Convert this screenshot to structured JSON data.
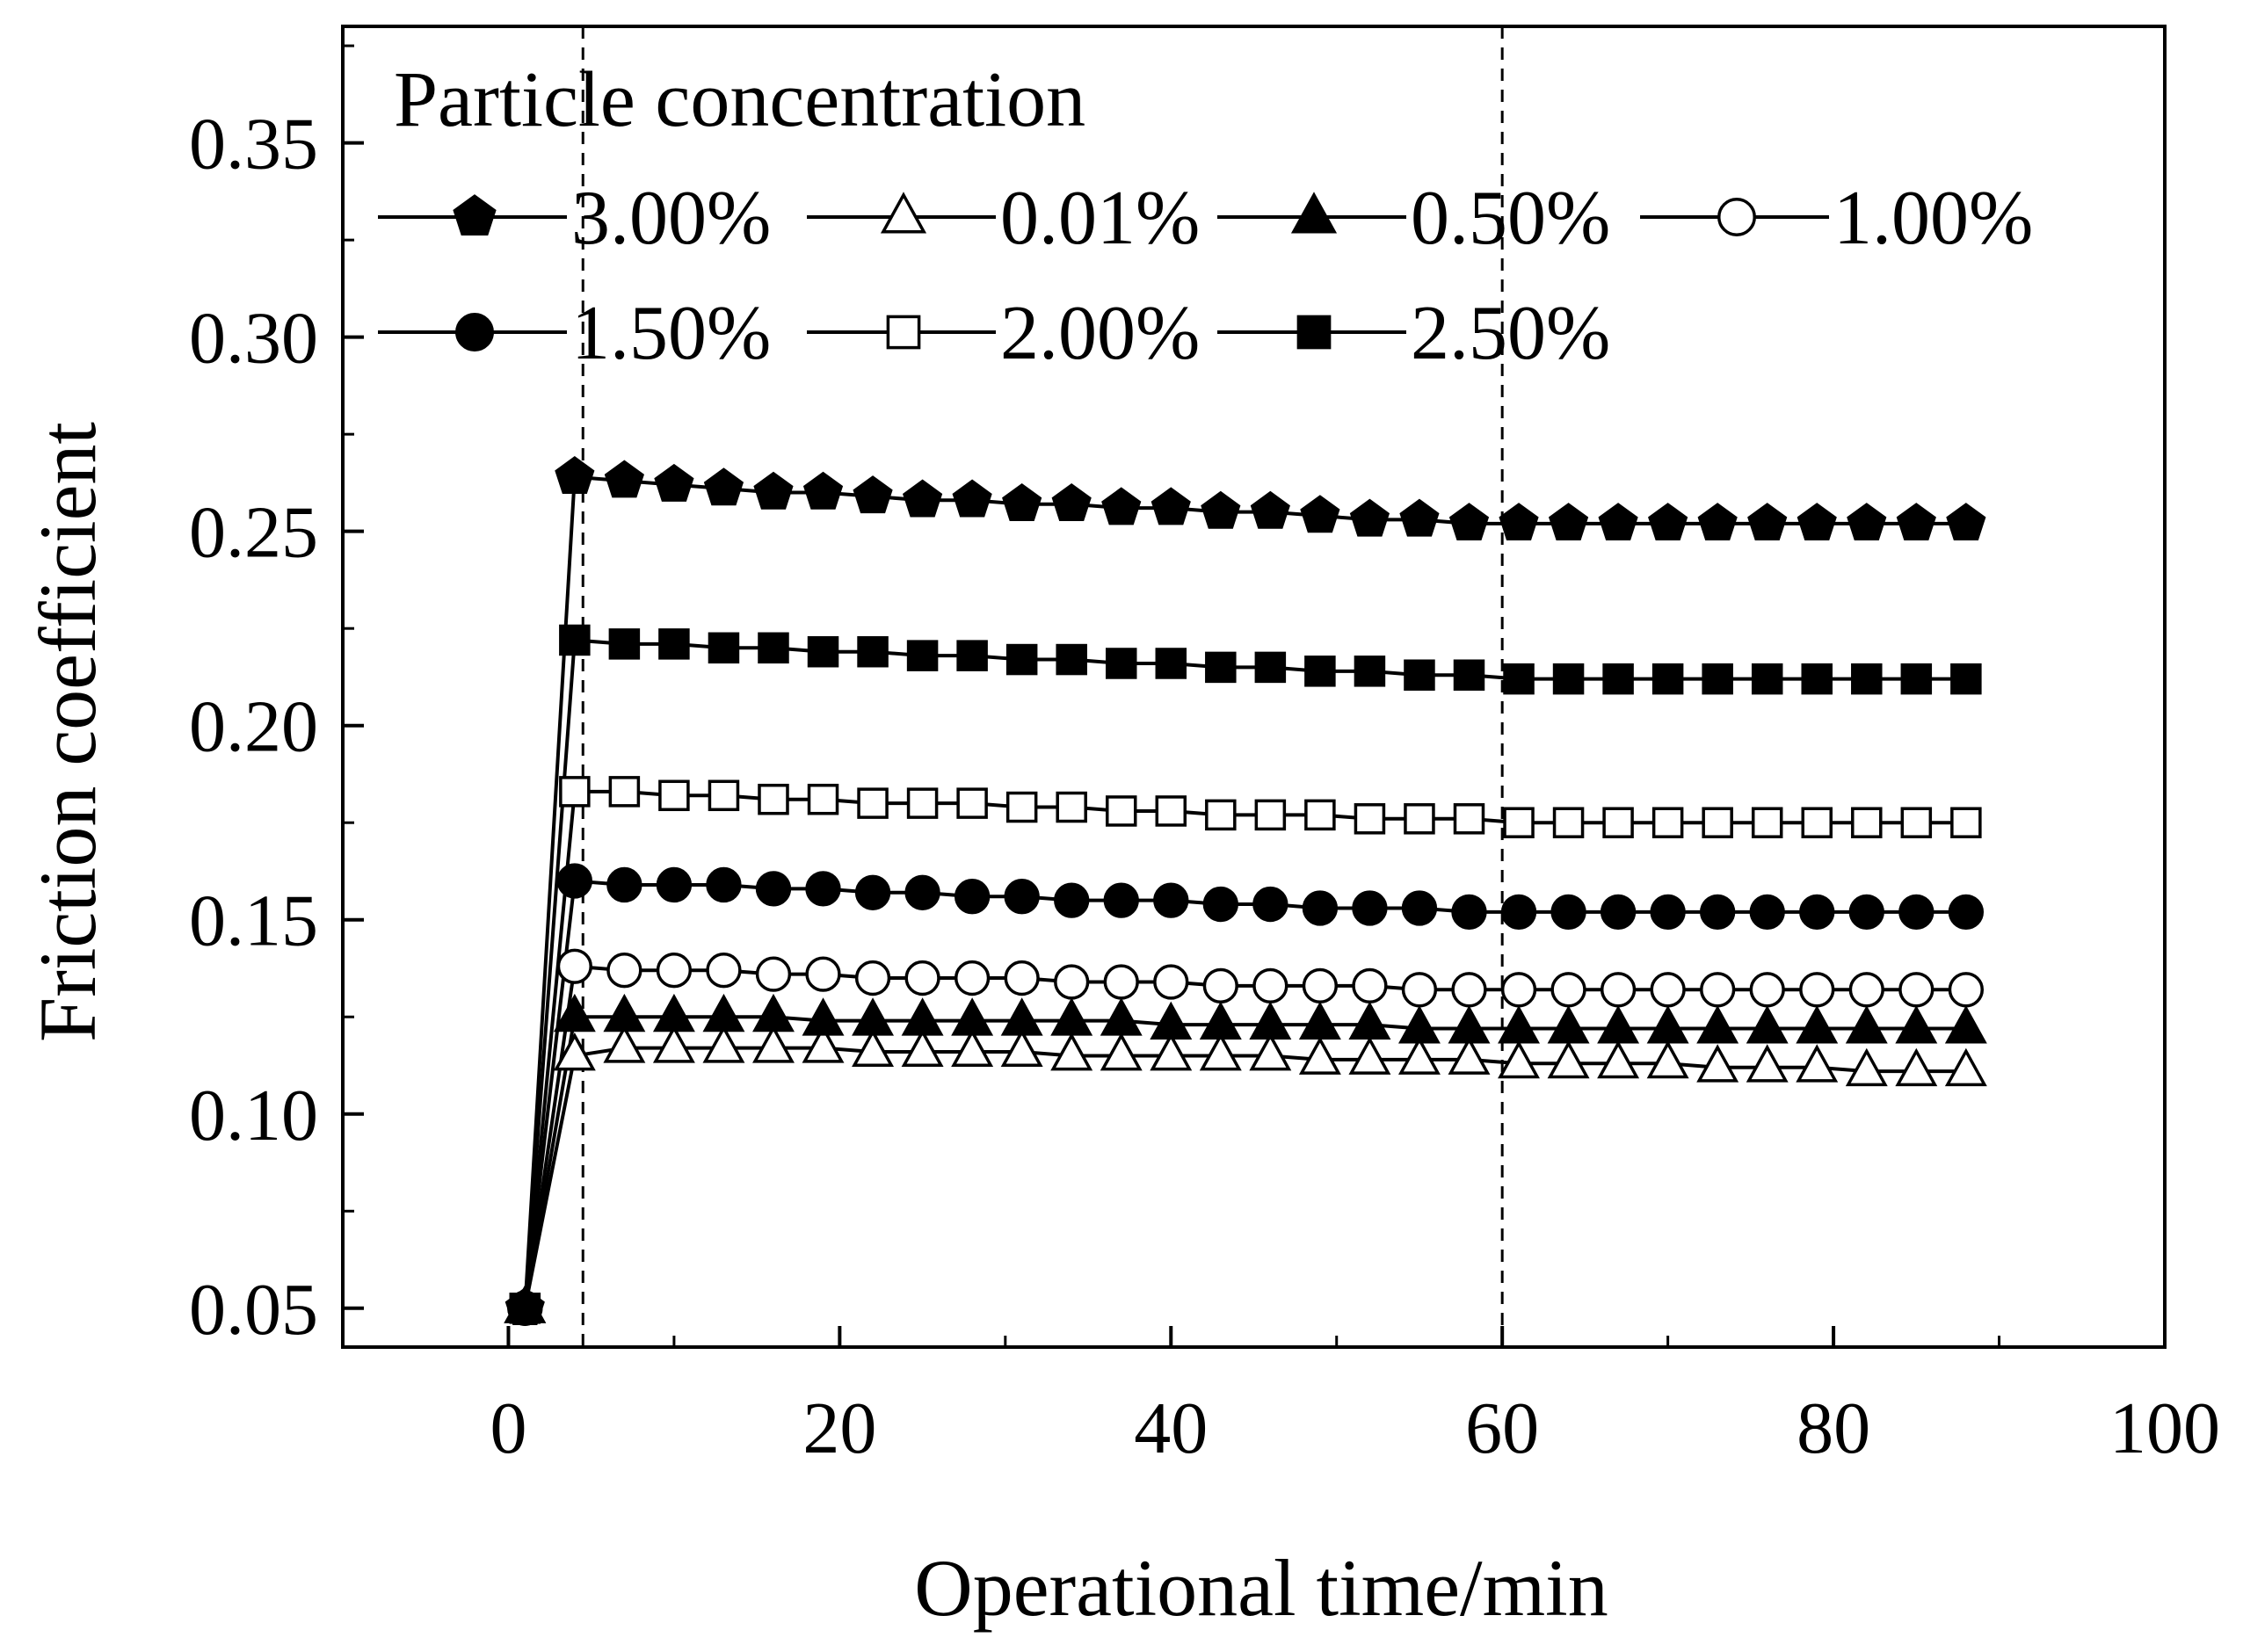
{
  "chart_data": {
    "type": "line",
    "title": "",
    "xlabel": "Operational time/min",
    "ylabel": "Friction coefficient",
    "xlim": [
      -10,
      100
    ],
    "ylim": [
      0.04,
      0.38
    ],
    "xticks": [
      0,
      20,
      40,
      60,
      80,
      100
    ],
    "xtick_labels": [
      "0",
      "20",
      "40",
      "60",
      "80",
      "100"
    ],
    "yticks": [
      0.05,
      0.1,
      0.15,
      0.2,
      0.25,
      0.3,
      0.35
    ],
    "ytick_labels": [
      "0.05",
      "0.10",
      "0.15",
      "0.20",
      "0.25",
      "0.30",
      "0.35"
    ],
    "reference_lines_x": [
      4.5,
      60
    ],
    "legend_title": "Particle concentration",
    "x": [
      1,
      4,
      7,
      10,
      13,
      16,
      19,
      22,
      25,
      28,
      31,
      34,
      37,
      40,
      43,
      46,
      49,
      52,
      55,
      58,
      61,
      64,
      67,
      70,
      73,
      76,
      79,
      82,
      85,
      88
    ],
    "series": [
      {
        "name": "3.00%",
        "marker": "pentagon",
        "fill": "filled",
        "values": [
          0.05,
          0.264,
          0.263,
          0.262,
          0.261,
          0.26,
          0.26,
          0.259,
          0.258,
          0.258,
          0.257,
          0.257,
          0.256,
          0.256,
          0.255,
          0.255,
          0.254,
          0.253,
          0.253,
          0.252,
          0.252,
          0.252,
          0.252,
          0.252,
          0.252,
          0.252,
          0.252,
          0.252,
          0.252,
          0.252
        ]
      },
      {
        "name": "0.01%",
        "marker": "triangle",
        "fill": "open",
        "values": [
          0.05,
          0.115,
          0.117,
          0.117,
          0.117,
          0.117,
          0.117,
          0.116,
          0.116,
          0.116,
          0.116,
          0.115,
          0.115,
          0.115,
          0.115,
          0.115,
          0.114,
          0.114,
          0.114,
          0.114,
          0.113,
          0.113,
          0.113,
          0.113,
          0.112,
          0.112,
          0.112,
          0.111,
          0.111,
          0.111
        ]
      },
      {
        "name": "0.50%",
        "marker": "triangle",
        "fill": "filled",
        "values": [
          0.05,
          0.125,
          0.125,
          0.125,
          0.125,
          0.125,
          0.124,
          0.124,
          0.124,
          0.124,
          0.124,
          0.124,
          0.124,
          0.123,
          0.123,
          0.123,
          0.123,
          0.123,
          0.122,
          0.122,
          0.122,
          0.122,
          0.122,
          0.122,
          0.122,
          0.122,
          0.122,
          0.122,
          0.122,
          0.122
        ]
      },
      {
        "name": "1.00%",
        "marker": "circle",
        "fill": "open",
        "values": [
          0.05,
          0.138,
          0.137,
          0.137,
          0.137,
          0.136,
          0.136,
          0.135,
          0.135,
          0.135,
          0.135,
          0.134,
          0.134,
          0.134,
          0.133,
          0.133,
          0.133,
          0.133,
          0.132,
          0.132,
          0.132,
          0.132,
          0.132,
          0.132,
          0.132,
          0.132,
          0.132,
          0.132,
          0.132,
          0.132
        ]
      },
      {
        "name": "1.50%",
        "marker": "circle",
        "fill": "filled",
        "values": [
          0.05,
          0.16,
          0.159,
          0.159,
          0.159,
          0.158,
          0.158,
          0.157,
          0.157,
          0.156,
          0.156,
          0.155,
          0.155,
          0.155,
          0.154,
          0.154,
          0.153,
          0.153,
          0.153,
          0.152,
          0.152,
          0.152,
          0.152,
          0.152,
          0.152,
          0.152,
          0.152,
          0.152,
          0.152,
          0.152
        ]
      },
      {
        "name": "2.00%",
        "marker": "square",
        "fill": "open",
        "values": [
          0.05,
          0.183,
          0.183,
          0.182,
          0.182,
          0.181,
          0.181,
          0.18,
          0.18,
          0.18,
          0.179,
          0.179,
          0.178,
          0.178,
          0.177,
          0.177,
          0.177,
          0.176,
          0.176,
          0.176,
          0.175,
          0.175,
          0.175,
          0.175,
          0.175,
          0.175,
          0.175,
          0.175,
          0.175,
          0.175
        ]
      },
      {
        "name": "2.50%",
        "marker": "square",
        "fill": "filled",
        "values": [
          0.05,
          0.222,
          0.221,
          0.221,
          0.22,
          0.22,
          0.219,
          0.219,
          0.218,
          0.218,
          0.217,
          0.217,
          0.216,
          0.216,
          0.215,
          0.215,
          0.214,
          0.214,
          0.213,
          0.213,
          0.212,
          0.212,
          0.212,
          0.212,
          0.212,
          0.212,
          0.212,
          0.212,
          0.212,
          0.212
        ]
      }
    ]
  }
}
